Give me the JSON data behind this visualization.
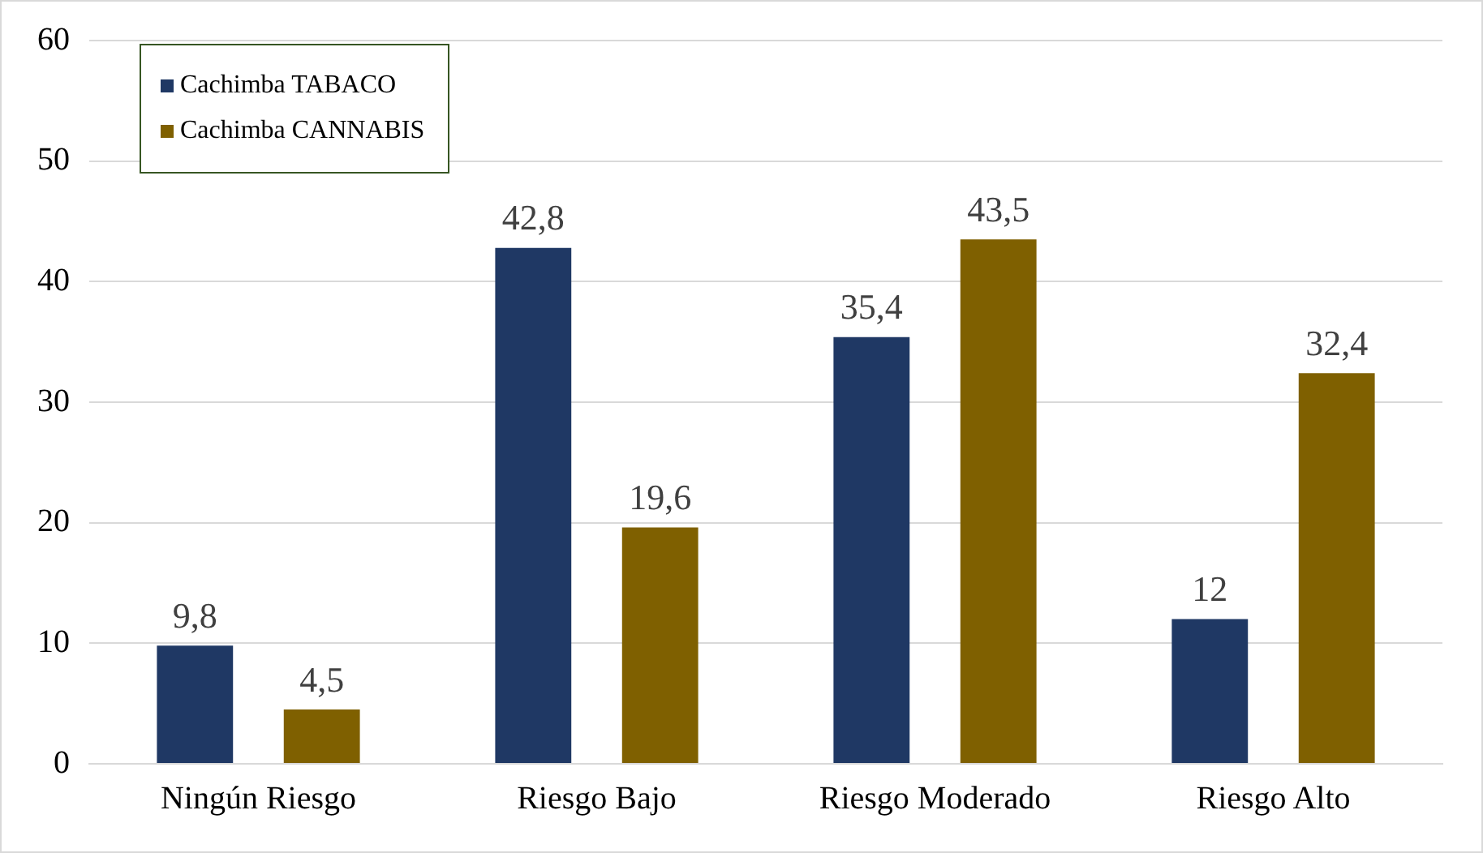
{
  "chart_data": {
    "type": "bar",
    "categories": [
      "Ningún Riesgo",
      "Riesgo Bajo",
      "Riesgo Moderado",
      "Riesgo Alto"
    ],
    "series": [
      {
        "name": "Cachimba TABACO",
        "color": "#1f3864",
        "values": [
          9.8,
          42.8,
          35.4,
          12
        ],
        "value_labels": [
          "9,8",
          "42,8",
          "35,4",
          "12"
        ]
      },
      {
        "name": "Cachimba CANNABIS",
        "color": "#7f6000",
        "values": [
          4.5,
          19.6,
          43.5,
          32.4
        ],
        "value_labels": [
          "4,5",
          "19,6",
          "43,5",
          "32,4"
        ]
      }
    ],
    "ylim": [
      0,
      60
    ],
    "yticks": [
      0,
      10,
      20,
      30,
      40,
      50,
      60
    ],
    "grid": "y",
    "legend": "top left"
  }
}
